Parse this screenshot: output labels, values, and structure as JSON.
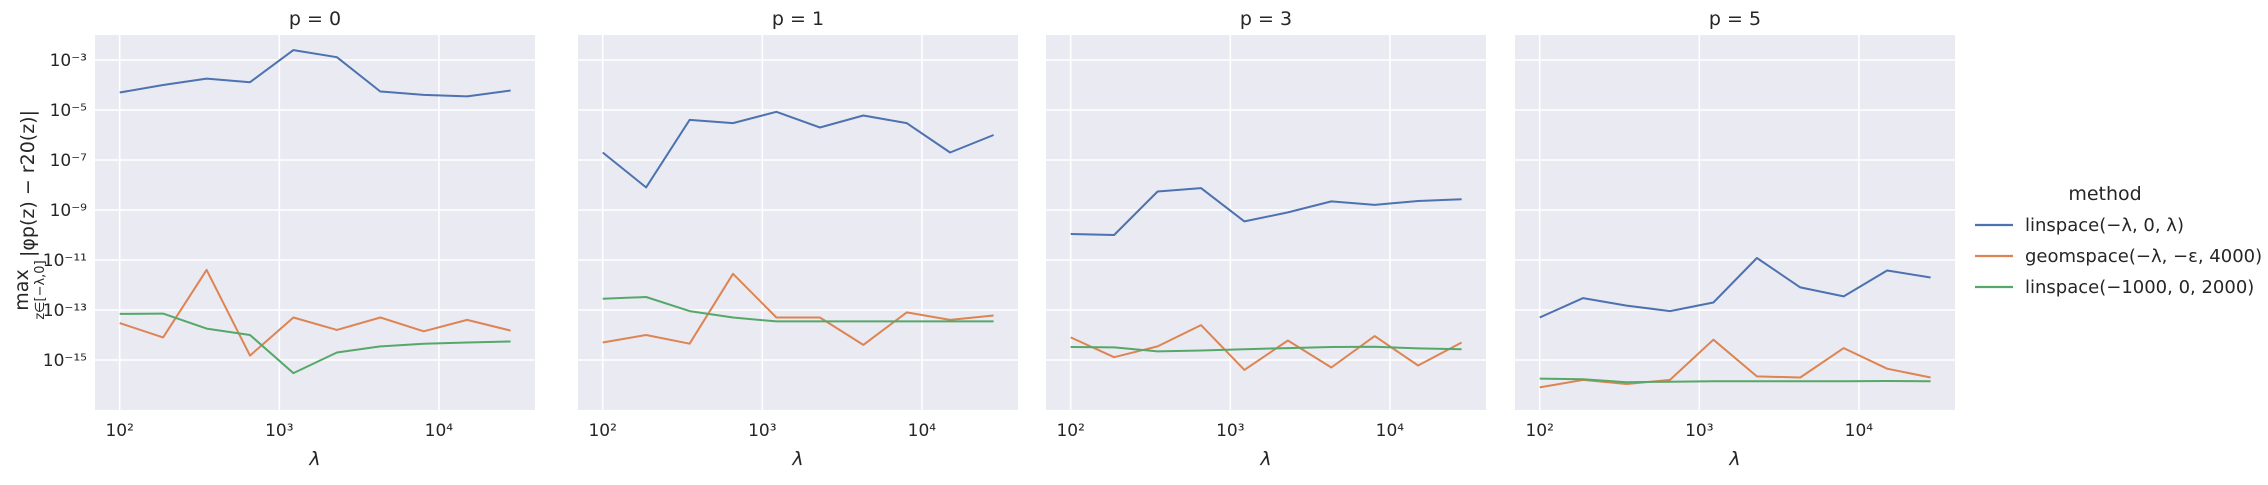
{
  "chart_data": {
    "type": "line",
    "x": [
      100,
      187,
      350,
      655,
      1226,
      2294,
      4292,
      8030,
      15025,
      28112
    ],
    "xscale": "log",
    "yscale": "log",
    "xlim": [
      70,
      40000
    ],
    "ylim": [
      1e-17,
      0.01
    ],
    "xticks": [
      100,
      1000,
      10000
    ],
    "xtick_labels": [
      "10²",
      "10³",
      "10⁴"
    ],
    "yticks": [
      1e-15,
      1e-13,
      1e-11,
      1e-09,
      1e-07,
      1e-05,
      0.001
    ],
    "ytick_labels": [
      "10⁻¹⁵",
      "10⁻¹³",
      "10⁻¹¹",
      "10⁻⁹",
      "10⁻⁷",
      "10⁻⁵",
      "10⁻³"
    ],
    "xlabel": "λ",
    "ylabel": "max_{z∈[−λ,0]} |φ_p(z) − r_20(z)|",
    "ylabel_main": "max",
    "ylabel_sub": "z∈[−λ,0]",
    "ylabel_rest": "|φp(z) − r20(z)|",
    "grid": true,
    "legend": {
      "title": "method",
      "placement": "right",
      "entries": [
        {
          "name": "linspace(−λ, 0, λ)",
          "color": "#4c72b0"
        },
        {
          "name": "geomspace(−λ, −ε, 4000)",
          "color": "#dd8452"
        },
        {
          "name": "linspace(−1000, 0, 2000)",
          "color": "#55a868"
        }
      ]
    },
    "panels": [
      {
        "title": "p = 0",
        "series": [
          {
            "name": "linspace(−λ, 0, λ)",
            "values": [
              5e-05,
              0.0001,
              0.00018,
              0.00013,
              0.0025,
              0.0013,
              5.5e-05,
              4e-05,
              3.5e-05,
              6e-05
            ]
          },
          {
            "name": "geomspace(−λ, −ε, 4000)",
            "values": [
              3e-14,
              8e-15,
              4e-12,
              1.5e-15,
              5e-14,
              1.6e-14,
              5e-14,
              1.4e-14,
              4e-14,
              1.5e-14
            ]
          },
          {
            "name": "linspace(−1000, 0, 2000)",
            "values": [
              7e-14,
              7.2e-14,
              1.8e-14,
              1e-14,
              3e-16,
              2e-15,
              3.5e-15,
              4.5e-15,
              5e-15,
              5.5e-15
            ]
          }
        ]
      },
      {
        "title": "p = 1",
        "series": [
          {
            "name": "linspace(−λ, 0, λ)",
            "values": [
              2e-07,
              8e-09,
              4e-06,
              3e-06,
              8.5e-06,
              2e-06,
              6e-06,
              3e-06,
              2e-07,
              1e-06
            ]
          },
          {
            "name": "geomspace(−λ, −ε, 4000)",
            "values": [
              5e-15,
              1e-14,
              4.5e-15,
              2.8e-12,
              5e-14,
              5e-14,
              4e-15,
              8e-14,
              4e-14,
              6e-14
            ]
          },
          {
            "name": "linspace(−1000, 0, 2000)",
            "values": [
              2.8e-13,
              3.3e-13,
              9e-14,
              5e-14,
              3.5e-14,
              3.5e-14,
              3.5e-14,
              3.5e-14,
              3.5e-14,
              3.5e-14
            ]
          }
        ]
      },
      {
        "title": "p = 3",
        "series": [
          {
            "name": "linspace(−λ, 0, λ)",
            "values": [
              1.1e-10,
              1e-10,
              5.5e-09,
              7.5e-09,
              3.5e-10,
              8e-10,
              2.2e-09,
              1.6e-09,
              2.3e-09,
              2.7e-09
            ]
          },
          {
            "name": "geomspace(−λ, −ε, 4000)",
            "values": [
              8e-15,
              1.3e-15,
              3.5e-15,
              2.5e-14,
              4e-16,
              6e-15,
              5e-16,
              9e-15,
              6e-16,
              5e-15
            ]
          },
          {
            "name": "linspace(−1000, 0, 2000)",
            "values": [
              3.3e-15,
              3.2e-15,
              2.2e-15,
              2.4e-15,
              2.7e-15,
              3e-15,
              3.3e-15,
              3.4e-15,
              2.9e-15,
              2.7e-15
            ]
          }
        ]
      },
      {
        "title": "p = 5",
        "series": [
          {
            "name": "linspace(−λ, 0, λ)",
            "values": [
              5e-14,
              3e-13,
              1.5e-13,
              9e-14,
              2e-13,
              1.2e-11,
              8e-13,
              3.5e-13,
              3.8e-12,
              2e-12
            ]
          },
          {
            "name": "geomspace(−λ, −ε, 4000)",
            "values": [
              8e-17,
              1.6e-16,
              1.1e-16,
              1.6e-16,
              6.5e-15,
              2.2e-16,
              2e-16,
              3e-15,
              4.5e-16,
              2e-16
            ]
          },
          {
            "name": "linspace(−1000, 0, 2000)",
            "values": [
              1.8e-16,
              1.7e-16,
              1.3e-16,
              1.35e-16,
              1.4e-16,
              1.4e-16,
              1.4e-16,
              1.4e-16,
              1.45e-16,
              1.4e-16
            ]
          }
        ]
      }
    ]
  }
}
